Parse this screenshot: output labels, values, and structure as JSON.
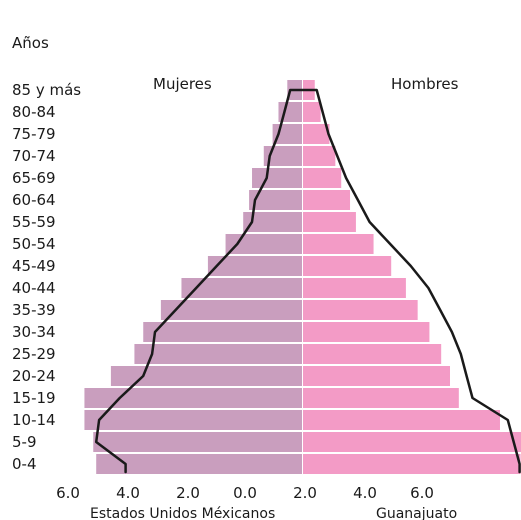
{
  "chart_data": {
    "type": "bar",
    "orientation": "horizontal-pyramid",
    "age_axis_label": "Años",
    "categories": [
      "0-4",
      "5-9",
      "10-14",
      "15-19",
      "20-24",
      "25-29",
      "30-34",
      "35-39",
      "40-44",
      "45-49",
      "50-54",
      "55-59",
      "60-64",
      "65-69",
      "70-74",
      "75-79",
      "80-84",
      "85 y más"
    ],
    "series": [
      {
        "name": "Mujeres",
        "side": "left",
        "color": "#c99ebe",
        "values": [
          7.0,
          7.1,
          7.4,
          7.4,
          6.5,
          5.7,
          5.4,
          4.8,
          4.1,
          3.2,
          2.6,
          2.0,
          1.8,
          1.7,
          1.3,
          1.0,
          0.8,
          0.5
        ]
      },
      {
        "name": "Hombres",
        "side": "right",
        "color": "#f39bc6",
        "values": [
          7.4,
          7.6,
          6.7,
          5.3,
          5.0,
          4.7,
          4.3,
          3.9,
          3.5,
          3.0,
          2.4,
          1.8,
          1.6,
          1.3,
          1.1,
          0.9,
          0.6,
          0.4
        ]
      }
    ],
    "comparison_line": {
      "color": "#1a1a1a",
      "left_values": [
        6.0,
        7.0,
        6.9,
        6.2,
        5.4,
        5.1,
        5.0,
        4.3,
        3.6,
        2.9,
        2.2,
        1.7,
        1.6,
        1.2,
        1.1,
        0.8,
        0.6,
        0.4
      ],
      "right_values": [
        7.4,
        7.2,
        7.0,
        5.8,
        5.6,
        5.4,
        5.1,
        4.7,
        4.3,
        3.7,
        3.0,
        2.3,
        1.9,
        1.5,
        1.2,
        0.9,
        0.7,
        0.5
      ]
    },
    "x_ticks": [
      "6.0",
      "4.0",
      "2.0",
      "0.0",
      "2.0",
      "4.0",
      "6.0"
    ],
    "labels": {
      "left_inside": "Mujeres",
      "right_inside": "Hombres",
      "left_bottom": "Estados Unidos Méxicanos",
      "right_bottom": "Guanajuato"
    }
  }
}
